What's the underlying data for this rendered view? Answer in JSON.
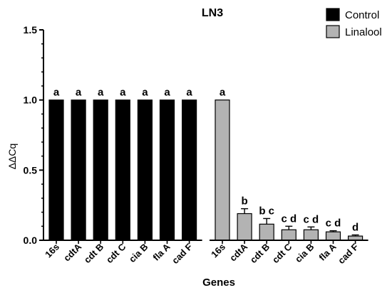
{
  "chart_data": {
    "type": "bar",
    "title": "LN3",
    "xlabel": "Genes",
    "ylabel": "ΔΔCq",
    "ylim": [
      0,
      1.5
    ],
    "yticks": [
      "0.0",
      "0.5",
      "1.0",
      "1.5"
    ],
    "legend_placement": "top-right",
    "groups": [
      {
        "name": "Control",
        "color": "#000000",
        "categories": [
          "16s",
          "cdtA",
          "cdt B",
          "cdt C",
          "cia B",
          "fla A",
          "cad F"
        ],
        "values": [
          1.0,
          1.0,
          1.0,
          1.0,
          1.0,
          1.0,
          1.0
        ],
        "errors": [
          0,
          0,
          0,
          0,
          0,
          0,
          0
        ],
        "labels": [
          "a",
          "a",
          "a",
          "a",
          "a",
          "a",
          "a"
        ]
      },
      {
        "name": "Linalool",
        "color": "#b3b3b3",
        "categories": [
          "16s",
          "cdtA",
          "cdt B",
          "cdt C",
          "cia B",
          "fla A",
          "cad F"
        ],
        "values": [
          1.0,
          0.19,
          0.115,
          0.075,
          0.075,
          0.06,
          0.03
        ],
        "errors": [
          0,
          0.035,
          0.04,
          0.025,
          0.02,
          0.008,
          0.008
        ],
        "labels": [
          "a",
          "b",
          "b c",
          "c d",
          "c d",
          "c d",
          "d"
        ]
      }
    ]
  }
}
